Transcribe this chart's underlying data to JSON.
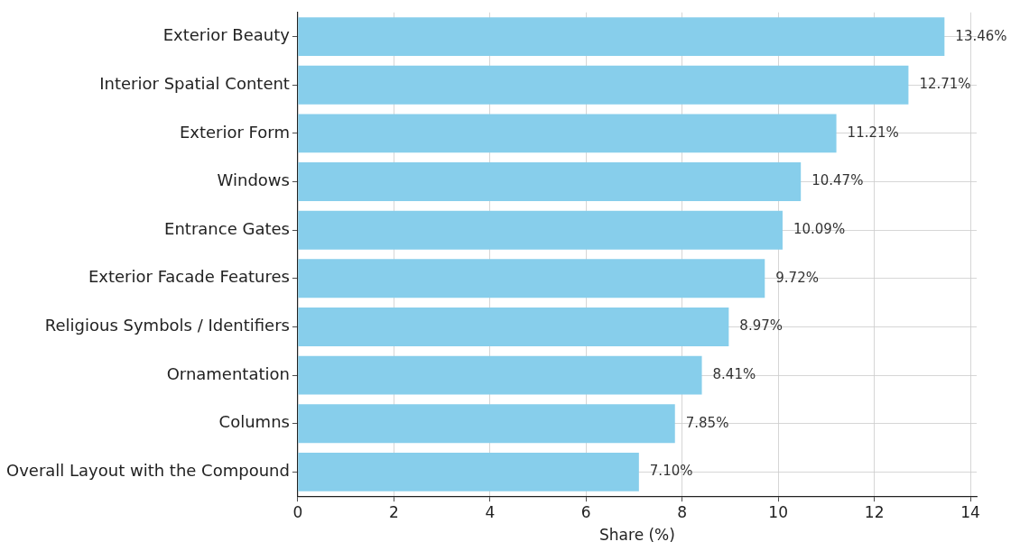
{
  "chart_data": {
    "type": "bar",
    "orientation": "horizontal",
    "xlabel": "Share (%)",
    "categories": [
      "Exterior Beauty",
      "Interior Spatial Content",
      "Exterior Form",
      "Windows",
      "Entrance Gates",
      "Exterior Facade Features",
      "Religious Symbols / Identifiers",
      "Ornamentation",
      "Columns",
      "Overall Layout with the Compound"
    ],
    "values": [
      13.46,
      12.71,
      11.21,
      10.47,
      10.09,
      9.72,
      8.97,
      8.41,
      7.85,
      7.1
    ],
    "value_labels": [
      "13.46%",
      "12.71%",
      "11.21%",
      "10.47%",
      "10.09%",
      "9.72%",
      "8.97%",
      "8.41%",
      "7.85%",
      "7.10%"
    ],
    "color": "#87ceeb",
    "xlim": [
      0,
      14.13
    ],
    "xticks": [
      0,
      2,
      4,
      6,
      8,
      10,
      12,
      14
    ],
    "grid": true
  }
}
